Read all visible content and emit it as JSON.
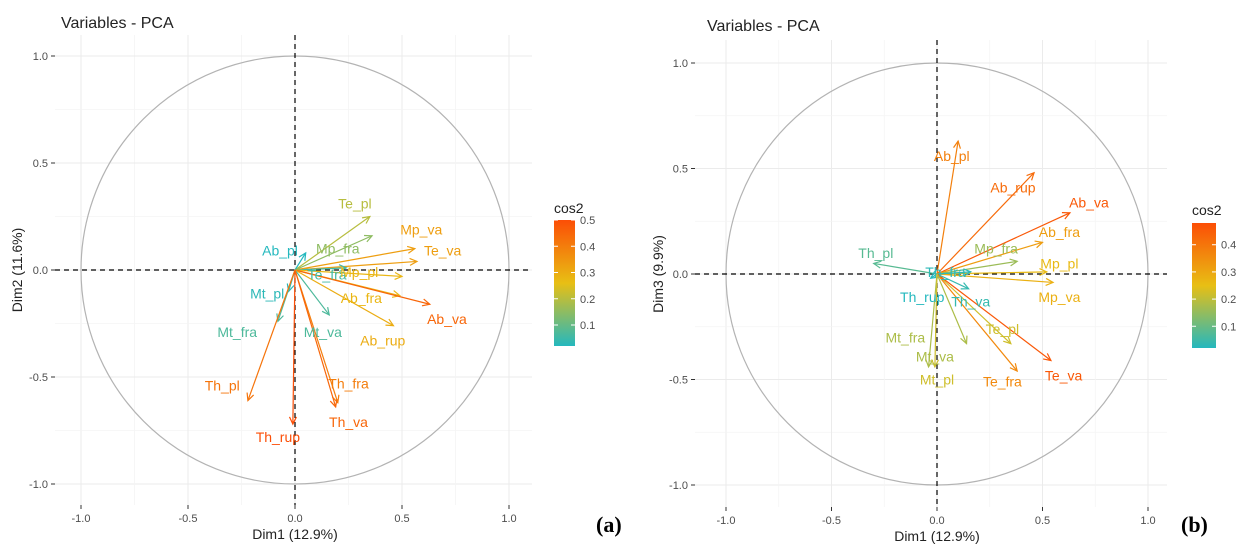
{
  "chart_data": [
    {
      "type": "scatter",
      "panel_tag": "(a)",
      "title": "Variables - PCA",
      "xlabel": "Dim1 (12.9%)",
      "ylabel": "Dim2 (11.6%)",
      "xlim": [
        -1.0,
        1.0
      ],
      "ylim": [
        -1.0,
        1.0
      ],
      "xticks": [
        -1.0,
        -0.5,
        0.0,
        0.5,
        1.0
      ],
      "yticks": [
        -1.0,
        -0.5,
        0.0,
        0.5,
        1.0
      ],
      "xtick_labels": [
        "-1.0",
        "-0.5",
        "0.0",
        "0.5",
        "1.0"
      ],
      "ytick_labels": [
        "-1.0",
        "-0.5",
        "0.0",
        "0.5",
        "1.0"
      ],
      "grid": true,
      "legend": {
        "title": "cos2",
        "range": [
          0.02,
          0.5
        ],
        "ticks": [
          0.1,
          0.2,
          0.3,
          0.4,
          0.5
        ],
        "tick_labels": [
          "0.1",
          "0.2",
          "0.3",
          "0.4",
          "0.5"
        ],
        "placement": "right"
      },
      "variables": [
        {
          "name": "Te_pl",
          "x": 0.35,
          "y": 0.25,
          "cos2": 0.2,
          "lx": 0.28,
          "ly": 0.31
        },
        {
          "name": "Mp_va",
          "x": 0.56,
          "y": 0.1,
          "cos2": 0.33,
          "lx": 0.59,
          "ly": 0.19
        },
        {
          "name": "Te_va",
          "x": 0.57,
          "y": 0.04,
          "cos2": 0.33,
          "lx": 0.69,
          "ly": 0.09
        },
        {
          "name": "Mp_fra",
          "x": 0.36,
          "y": 0.16,
          "cos2": 0.15,
          "lx": 0.2,
          "ly": 0.1
        },
        {
          "name": "Ab_pl",
          "x": 0.05,
          "y": 0.08,
          "cos2": 0.02,
          "lx": -0.07,
          "ly": 0.09
        },
        {
          "name": "Te_fra",
          "x": 0.24,
          "y": 0.01,
          "cos2": 0.06,
          "lx": 0.15,
          "ly": -0.02
        },
        {
          "name": "Mp_pl",
          "x": 0.5,
          "y": -0.03,
          "cos2": 0.28,
          "lx": 0.3,
          "ly": -0.01
        },
        {
          "name": "Ab_fra",
          "x": 0.49,
          "y": -0.12,
          "cos2": 0.28,
          "lx": 0.31,
          "ly": -0.13
        },
        {
          "name": "Ab_va",
          "x": 0.63,
          "y": -0.16,
          "cos2": 0.45,
          "lx": 0.71,
          "ly": -0.23
        },
        {
          "name": "Ab_rup",
          "x": 0.46,
          "y": -0.26,
          "cos2": 0.3,
          "lx": 0.41,
          "ly": -0.33
        },
        {
          "name": "Mt_va",
          "x": 0.16,
          "y": -0.21,
          "cos2": 0.07,
          "lx": 0.13,
          "ly": -0.29
        },
        {
          "name": "Mt_pl",
          "x": -0.03,
          "y": -0.1,
          "cos2": 0.03,
          "lx": -0.13,
          "ly": -0.11
        },
        {
          "name": "Mt_fra",
          "x": -0.08,
          "y": -0.24,
          "cos2": 0.07,
          "lx": -0.27,
          "ly": -0.29
        },
        {
          "name": "Th_pl",
          "x": -0.22,
          "y": -0.61,
          "cos2": 0.42,
          "lx": -0.34,
          "ly": -0.54
        },
        {
          "name": "Th_rup",
          "x": -0.01,
          "y": -0.72,
          "cos2": 0.5,
          "lx": -0.08,
          "ly": -0.78
        },
        {
          "name": "Th_fra",
          "x": 0.2,
          "y": -0.62,
          "cos2": 0.4,
          "lx": 0.25,
          "ly": -0.53
        },
        {
          "name": "Th_va",
          "x": 0.19,
          "y": -0.64,
          "cos2": 0.45,
          "lx": 0.25,
          "ly": -0.71
        }
      ]
    },
    {
      "type": "scatter",
      "panel_tag": "(b)",
      "title": "Variables - PCA",
      "xlabel": "Dim1 (12.9%)",
      "ylabel": "Dim3 (9.9%)",
      "xlim": [
        -1.0,
        1.0
      ],
      "ylim": [
        -1.0,
        1.0
      ],
      "xticks": [
        -1.0,
        -0.5,
        0.0,
        0.5,
        1.0
      ],
      "yticks": [
        -1.0,
        -0.5,
        0.0,
        0.5,
        1.0
      ],
      "xtick_labels": [
        "-1.0",
        "-0.5",
        "0.0",
        "0.5",
        "1.0"
      ],
      "ytick_labels": [
        "-1.0",
        "-0.5",
        "0.0",
        "0.5",
        "1.0"
      ],
      "grid": true,
      "legend": {
        "title": "cos2",
        "range": [
          0.02,
          0.48
        ],
        "ticks": [
          0.1,
          0.2,
          0.3,
          0.4
        ],
        "tick_labels": [
          "0.1",
          "0.2",
          "0.3",
          "0.4"
        ],
        "placement": "right"
      },
      "variables": [
        {
          "name": "Ab_pl",
          "x": 0.1,
          "y": 0.63,
          "cos2": 0.38,
          "lx": 0.07,
          "ly": 0.56
        },
        {
          "name": "Ab_rup",
          "x": 0.46,
          "y": 0.48,
          "cos2": 0.42,
          "lx": 0.36,
          "ly": 0.41
        },
        {
          "name": "Ab_va",
          "x": 0.63,
          "y": 0.29,
          "cos2": 0.46,
          "lx": 0.72,
          "ly": 0.34
        },
        {
          "name": "Ab_fra",
          "x": 0.5,
          "y": 0.15,
          "cos2": 0.32,
          "lx": 0.58,
          "ly": 0.2
        },
        {
          "name": "Mp_fra",
          "x": 0.38,
          "y": 0.06,
          "cos2": 0.16,
          "lx": 0.28,
          "ly": 0.12
        },
        {
          "name": "Mp_pl",
          "x": 0.52,
          "y": 0.01,
          "cos2": 0.26,
          "lx": 0.58,
          "ly": 0.05
        },
        {
          "name": "Mp_va",
          "x": 0.55,
          "y": -0.04,
          "cos2": 0.28,
          "lx": 0.58,
          "ly": -0.11
        },
        {
          "name": "Th_pl",
          "x": -0.3,
          "y": 0.05,
          "cos2": 0.08,
          "lx": -0.29,
          "ly": 0.1
        },
        {
          "name": "Th_fra",
          "x": 0.16,
          "y": 0.01,
          "cos2": 0.03,
          "lx": 0.04,
          "ly": 0.01
        },
        {
          "name": "Th_rup",
          "x": -0.03,
          "y": -0.02,
          "cos2": 0.02,
          "lx": -0.07,
          "ly": -0.11
        },
        {
          "name": "Th_va",
          "x": 0.15,
          "y": -0.07,
          "cos2": 0.04,
          "lx": 0.16,
          "ly": -0.13
        },
        {
          "name": "Te_pl",
          "x": 0.35,
          "y": -0.33,
          "cos2": 0.22,
          "lx": 0.31,
          "ly": -0.26
        },
        {
          "name": "Te_va",
          "x": 0.54,
          "y": -0.41,
          "cos2": 0.46,
          "lx": 0.6,
          "ly": -0.48
        },
        {
          "name": "Te_fra",
          "x": 0.38,
          "y": -0.46,
          "cos2": 0.36,
          "lx": 0.31,
          "ly": -0.51
        },
        {
          "name": "Mt_va",
          "x": 0.14,
          "y": -0.33,
          "cos2": 0.18,
          "lx": -0.01,
          "ly": -0.39
        },
        {
          "name": "Mt_fra",
          "x": -0.04,
          "y": -0.44,
          "cos2": 0.18,
          "lx": -0.15,
          "ly": -0.3
        },
        {
          "name": "Mt_pl",
          "x": -0.01,
          "y": -0.44,
          "cos2": 0.22,
          "lx": 0.0,
          "ly": -0.5
        }
      ]
    }
  ]
}
